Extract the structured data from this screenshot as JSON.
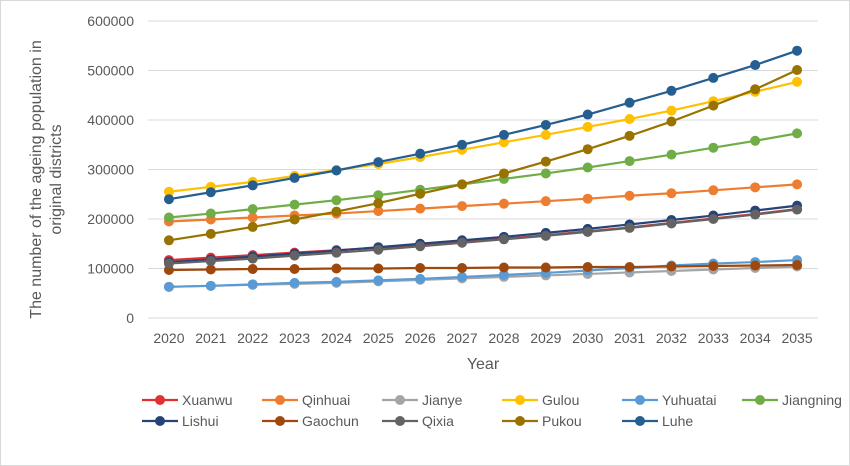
{
  "chart_data": {
    "type": "line",
    "title": "",
    "xlabel": "Year",
    "ylabel": "The number of the ageing population in original districts",
    "ylim": [
      0,
      600000
    ],
    "yticks": [
      0,
      100000,
      200000,
      300000,
      400000,
      500000,
      600000
    ],
    "grid": true,
    "legend_position": "bottom",
    "categories": [
      "2020",
      "2021",
      "2022",
      "2023",
      "2024",
      "2025",
      "2026",
      "2027",
      "2028",
      "2029",
      "2030",
      "2031",
      "2032",
      "2033",
      "2034",
      "2035"
    ],
    "series": [
      {
        "name": "Xuanwu",
        "color": "#E03030",
        "values": [
          117000,
          122000,
          127000,
          132000,
          137000,
          142000,
          148000,
          154000,
          160000,
          167000,
          175000,
          183000,
          192000,
          201000,
          210000,
          220000
        ]
      },
      {
        "name": "Qinhuai",
        "color": "#ED7D31",
        "values": [
          195000,
          199000,
          203000,
          207000,
          211000,
          216000,
          221000,
          226000,
          231000,
          236000,
          241000,
          247000,
          252000,
          258000,
          264000,
          270000
        ]
      },
      {
        "name": "Jianye",
        "color": "#A5A5A5",
        "values": [
          63000,
          65000,
          67000,
          69000,
          71000,
          74000,
          77000,
          80000,
          83000,
          86000,
          89000,
          92000,
          95000,
          98000,
          101000,
          104000
        ]
      },
      {
        "name": "Gulou",
        "color": "#FFC000",
        "values": [
          255000,
          265000,
          275000,
          287000,
          299000,
          311000,
          325000,
          340000,
          355000,
          370000,
          386000,
          402000,
          419000,
          438000,
          457000,
          477000
        ]
      },
      {
        "name": "Yuhuatai",
        "color": "#5B9BD5",
        "values": [
          63000,
          65000,
          68000,
          71000,
          73000,
          76000,
          79000,
          83000,
          87000,
          91000,
          96000,
          101000,
          106000,
          110000,
          113000,
          117000
        ]
      },
      {
        "name": "Jiangning",
        "color": "#70AD47",
        "values": [
          203000,
          211000,
          220000,
          229000,
          238000,
          248000,
          259000,
          270000,
          281000,
          292000,
          304000,
          317000,
          330000,
          344000,
          358000,
          373000
        ]
      },
      {
        "name": "Lishui",
        "color": "#264478",
        "values": [
          113000,
          118000,
          124000,
          130000,
          136000,
          143000,
          150000,
          157000,
          164000,
          172000,
          180000,
          189000,
          198000,
          207000,
          217000,
          227000
        ]
      },
      {
        "name": "Gaochun",
        "color": "#9E480E",
        "values": [
          97000,
          98000,
          99000,
          99000,
          100000,
          100000,
          101000,
          101000,
          102000,
          102000,
          103000,
          103000,
          104000,
          105000,
          106000,
          107000
        ]
      },
      {
        "name": "Qixia",
        "color": "#636363",
        "values": [
          110000,
          115000,
          120000,
          126000,
          132000,
          138000,
          145000,
          152000,
          159000,
          166000,
          174000,
          182000,
          191000,
          200000,
          209000,
          219000
        ]
      },
      {
        "name": "Pukou",
        "color": "#997300",
        "values": [
          157000,
          170000,
          184000,
          199000,
          215000,
          232000,
          251000,
          270000,
          292000,
          316000,
          341000,
          368000,
          397000,
          429000,
          462000,
          501000
        ]
      },
      {
        "name": "Luhe",
        "color": "#255E91",
        "values": [
          240000,
          254000,
          268000,
          283000,
          298000,
          315000,
          332000,
          350000,
          370000,
          390000,
          411000,
          435000,
          459000,
          485000,
          511000,
          540000
        ]
      }
    ]
  }
}
